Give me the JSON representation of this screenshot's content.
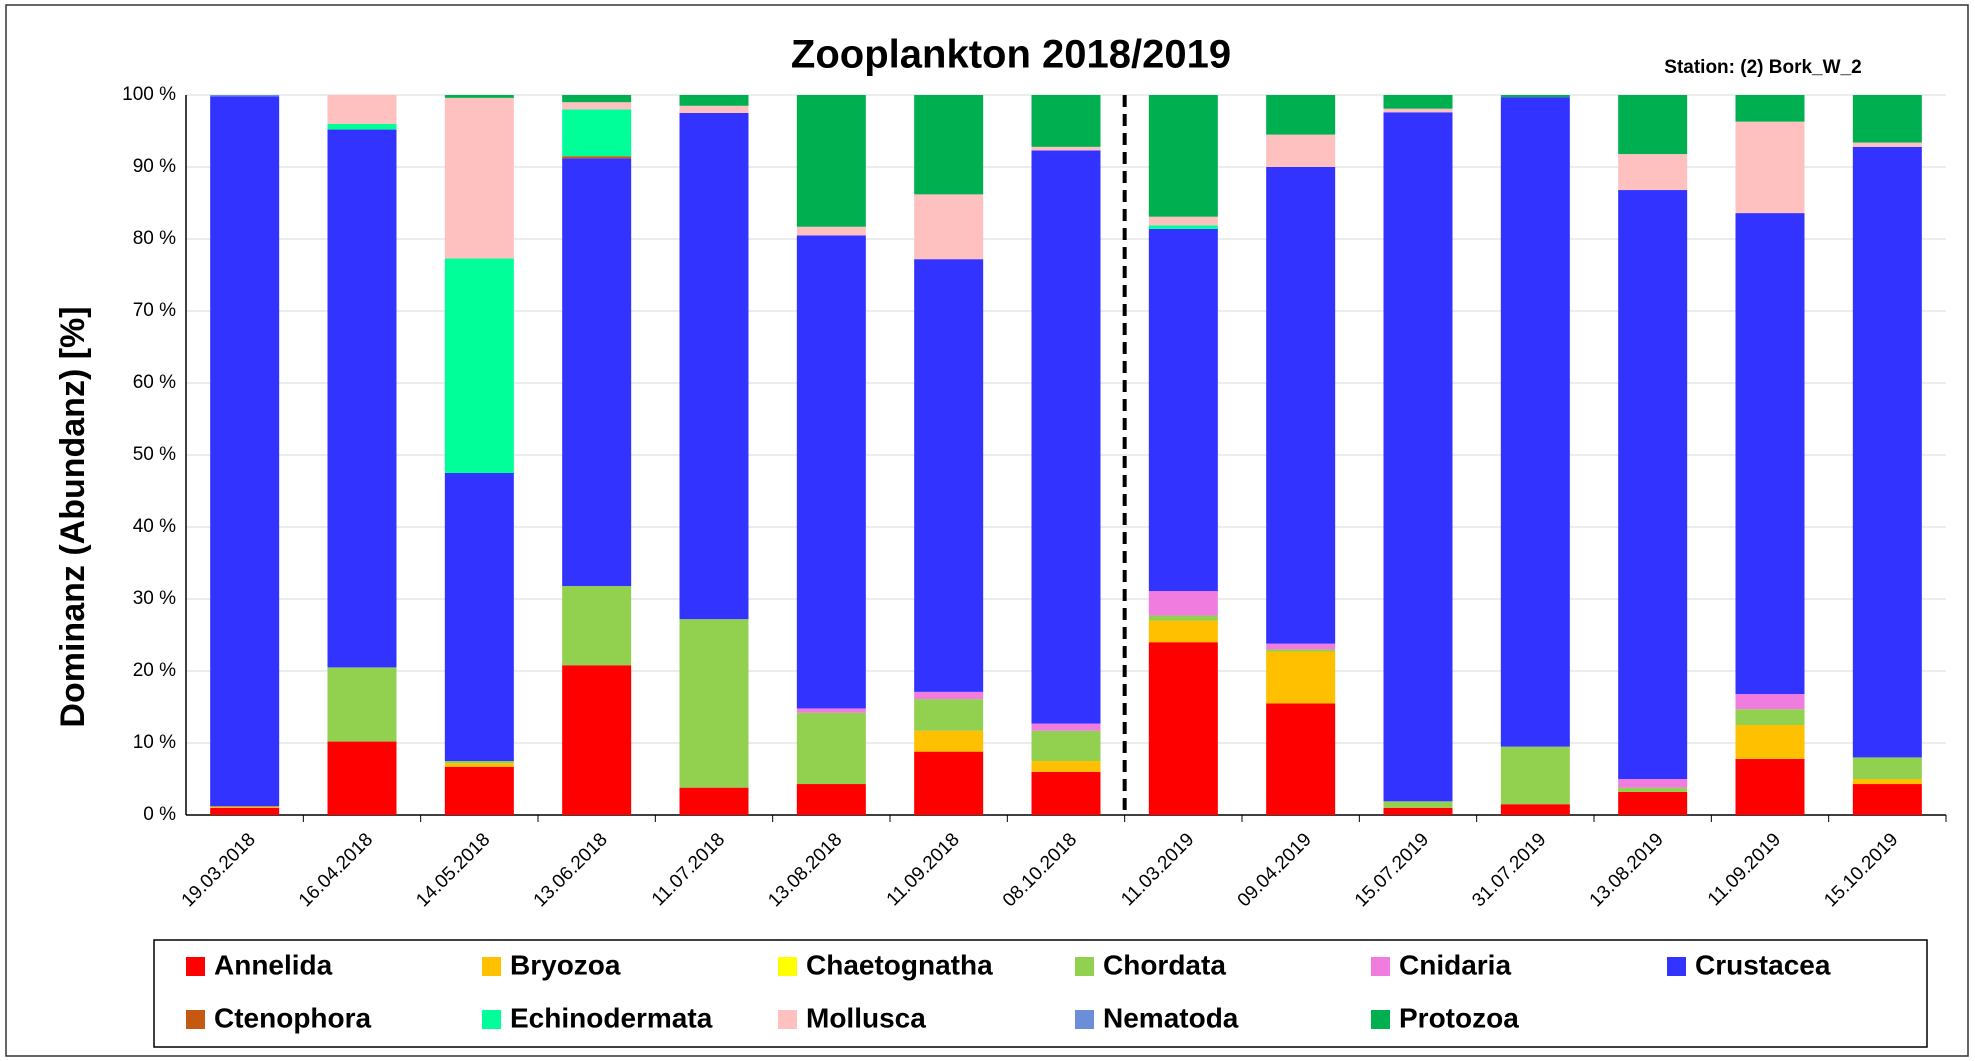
{
  "chart_data": {
    "type": "stacked_bar",
    "title": "Zooplankton 2018/2019",
    "subtitle": "Station: (2) Bork_W_2",
    "y_label": "Dominanz (Abundanz) [%]",
    "categories": [
      "19.03.2018",
      "16.04.2018",
      "14.05.2018",
      "13.06.2018",
      "11.07.2018",
      "13.08.2018",
      "11.09.2018",
      "08.10.2018",
      "11.03.2019",
      "09.04.2019",
      "15.07.2019",
      "31.07.2019",
      "13.08.2019",
      "11.09.2019",
      "15.10.2019"
    ],
    "series": [
      {
        "name": "Annelida",
        "color": "#ff0000",
        "values": [
          1.0,
          10.2,
          6.7,
          20.8,
          3.8,
          4.3,
          8.8,
          6.0,
          24.0,
          15.5,
          1.0,
          1.5,
          3.2,
          7.8,
          4.3
        ]
      },
      {
        "name": "Bryozoa",
        "color": "#ffc000",
        "values": [
          0.2,
          0,
          0.5,
          0,
          0,
          0,
          2.9,
          1.5,
          3.0,
          7.2,
          0,
          0,
          0,
          4.7,
          0.7
        ]
      },
      {
        "name": "Chaetognatha",
        "color": "#ffff00",
        "values": [
          0,
          0,
          0,
          0,
          0,
          0,
          0,
          0,
          0,
          0,
          0,
          0,
          0,
          0,
          0
        ]
      },
      {
        "name": "Chordata",
        "color": "#92d050",
        "values": [
          0,
          10.3,
          0.3,
          11.0,
          23.4,
          9.9,
          4.4,
          4.2,
          0.7,
          0.3,
          0.9,
          8.0,
          0.6,
          2.2,
          3.0
        ]
      },
      {
        "name": "Cnidaria",
        "color": "#f07ce0",
        "values": [
          0,
          0,
          0,
          0,
          0,
          0.6,
          1.0,
          1.0,
          3.4,
          0.8,
          0,
          0,
          1.2,
          2.1,
          0
        ]
      },
      {
        "name": "Crustacea",
        "color": "#3333ff",
        "values": [
          98.6,
          74.7,
          40.0,
          59.4,
          70.3,
          65.7,
          60.1,
          79.6,
          50.3,
          66.2,
          95.7,
          90.2,
          81.8,
          66.8,
          84.8
        ]
      },
      {
        "name": "Ctenophora",
        "color": "#c65911",
        "values": [
          0,
          0,
          0,
          0.3,
          0,
          0,
          0,
          0,
          0,
          0,
          0,
          0,
          0,
          0,
          0
        ]
      },
      {
        "name": "Echinodermata",
        "color": "#00ff99",
        "values": [
          0,
          0.8,
          29.8,
          6.5,
          0,
          0,
          0,
          0,
          0.5,
          0,
          0,
          0,
          0,
          0,
          0
        ]
      },
      {
        "name": "Mollusca",
        "color": "#ffc0c0",
        "values": [
          0,
          4.0,
          22.3,
          1.0,
          1.0,
          1.2,
          9.0,
          0.5,
          1.2,
          4.5,
          0.5,
          0,
          5.0,
          12.7,
          0.6
        ]
      },
      {
        "name": "Nematoda",
        "color": "#6a8fd8",
        "values": [
          0.2,
          0,
          0,
          0,
          0,
          0,
          0,
          0,
          0,
          0,
          0,
          0,
          0,
          0,
          0
        ]
      },
      {
        "name": "Protozoa",
        "color": "#00b050",
        "values": [
          0,
          0,
          0.4,
          1.0,
          1.5,
          18.3,
          13.8,
          7.2,
          16.9,
          5.5,
          1.9,
          0.3,
          8.2,
          3.7,
          6.6
        ]
      }
    ],
    "ylim": [
      0,
      100
    ],
    "yticks": [
      {
        "value": 0,
        "label": "0 %"
      },
      {
        "value": 10,
        "label": "10 %"
      },
      {
        "value": 20,
        "label": "20 %"
      },
      {
        "value": 30,
        "label": "30 %"
      },
      {
        "value": 40,
        "label": "40 %"
      },
      {
        "value": 50,
        "label": "50 %"
      },
      {
        "value": 60,
        "label": "60 %"
      },
      {
        "value": 70,
        "label": "70 %"
      },
      {
        "value": 80,
        "label": "80 %"
      },
      {
        "value": 90,
        "label": "90 %"
      },
      {
        "value": 100,
        "label": "100 %"
      }
    ],
    "grid": true,
    "legend": "bottom"
  }
}
